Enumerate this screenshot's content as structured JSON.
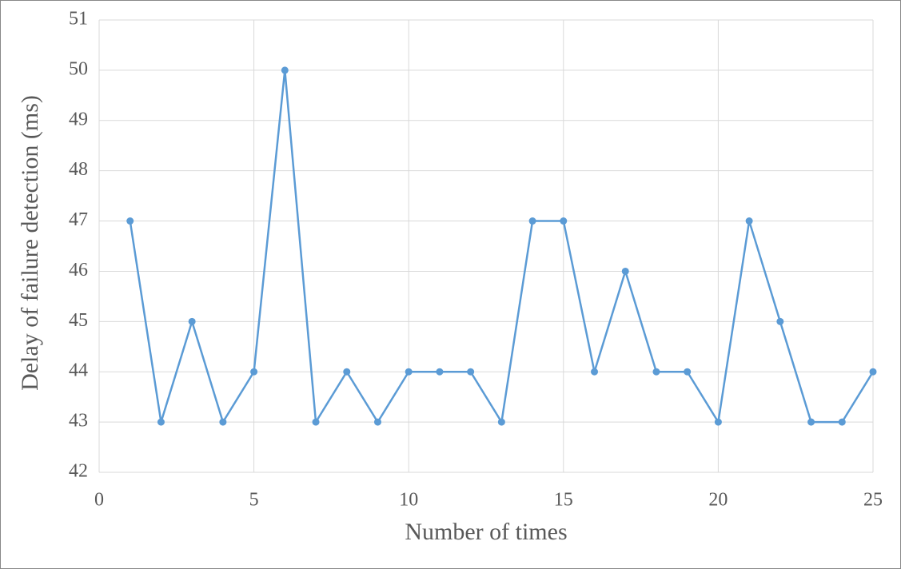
{
  "chart_data": {
    "type": "line",
    "x_label": "Number of times",
    "y_label": "Delay of failure detection (ms)",
    "x": [
      1,
      2,
      3,
      4,
      5,
      6,
      7,
      8,
      9,
      10,
      11,
      12,
      13,
      14,
      15,
      16,
      17,
      18,
      19,
      20,
      21,
      22,
      23,
      24,
      25
    ],
    "values": [
      47,
      43,
      45,
      43,
      44,
      50,
      43,
      44,
      43,
      44,
      44,
      44,
      43,
      47,
      47,
      44,
      46,
      44,
      44,
      43,
      47,
      45,
      43,
      43,
      44
    ],
    "color": "#5b9bd5",
    "xlim": [
      0,
      25
    ],
    "xticks": [
      0,
      5,
      10,
      15,
      20,
      25
    ],
    "ylim": [
      42,
      51
    ],
    "yticks": [
      42,
      43,
      44,
      45,
      46,
      47,
      48,
      49,
      50,
      51
    ],
    "grid": true
  }
}
